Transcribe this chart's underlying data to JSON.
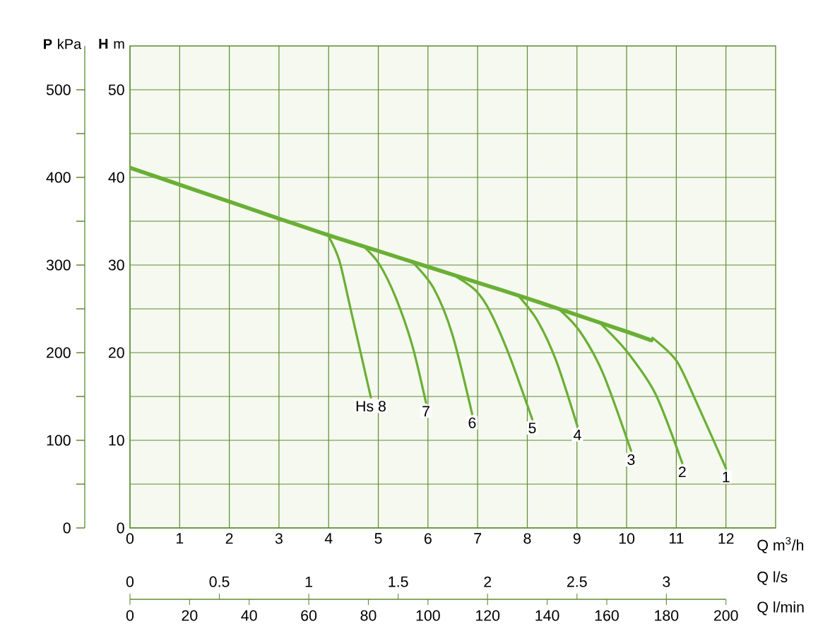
{
  "chart_data": {
    "type": "line",
    "xlabel": "Q m$^{3}$/h",
    "ylabel": "**H** m",
    "y2label": "**P** kPa",
    "x2label": "Q l/min",
    "annotations": [
      "Q l/s",
      "0",
      "0.5",
      "1",
      "1.5",
      "2",
      "2.5",
      "3"
    ],
    "xlim": [
      0,
      13
    ],
    "xticks": [
      0,
      1,
      2,
      3,
      4,
      5,
      6,
      7,
      8,
      9,
      10,
      11,
      12
    ],
    "ylim": [
      0,
      55
    ],
    "yticks": [
      0,
      {
        "value": 5,
        "label": null
      },
      10,
      {
        "value": 15,
        "label": null
      },
      20,
      {
        "value": 25,
        "label": null
      },
      30,
      {
        "value": 35,
        "label": null
      },
      40,
      {
        "value": 45,
        "label": null
      },
      50
    ],
    "y2lim": [
      0,
      550
    ],
    "y2ticks": [
      0,
      {
        "value": 50,
        "label": null
      },
      100,
      {
        "value": 150,
        "label": null
      },
      200,
      {
        "value": 250,
        "label": null
      },
      300,
      {
        "value": 350,
        "label": null
      },
      400,
      {
        "value": 450,
        "label": null
      },
      500
    ],
    "x2lim": [
      0,
      200
    ],
    "x2ticks": [
      0,
      20,
      40,
      60,
      80,
      100,
      120,
      140,
      160,
      180,
      200
    ],
    "grid": true,
    "series": [
      {
        "color": "#6aaf35",
        "x": [
          0,
          1.5,
          3,
          4,
          5,
          6,
          7,
          8,
          9,
          10,
          10.5
        ],
        "values": [
          41.1,
          38.2,
          35.3,
          33.4,
          31.6,
          29.8,
          28.0,
          26.2,
          24.3,
          22.4,
          21.4
        ]
      },
      {
        "name": "Hs 8",
        "color": "#6aaf35",
        "x": [
          3.97,
          4.21,
          4.43,
          4.85
        ],
        "values": [
          33.6,
          30.6,
          25.3,
          14.9
        ]
      },
      {
        "name": "7",
        "color": "#6aaf35",
        "x": [
          4.71,
          5.02,
          5.35,
          5.68,
          5.96
        ],
        "values": [
          32.1,
          30.1,
          26.3,
          20.9,
          14.3
        ]
      },
      {
        "name": "6",
        "color": "#6aaf35",
        "x": [
          5.68,
          6.11,
          6.49,
          6.89
        ],
        "values": [
          30.4,
          27.4,
          22.1,
          13.0
        ]
      },
      {
        "name": "5",
        "color": "#6aaf35",
        "x": [
          6.59,
          6.96,
          7.25,
          7.63,
          8.1
        ],
        "values": [
          28.6,
          27.1,
          24.7,
          19.8,
          12.4
        ]
      },
      {
        "name": "4",
        "color": "#6aaf35",
        "x": [
          7.82,
          8.2,
          8.58,
          9.01
        ],
        "values": [
          26.5,
          23.7,
          19.1,
          11.6
        ]
      },
      {
        "name": "3",
        "color": "#6aaf35",
        "x": [
          8.63,
          9.05,
          9.52,
          10.09
        ],
        "values": [
          25.0,
          22.5,
          17.7,
          8.8
        ]
      },
      {
        "name": "2",
        "color": "#6aaf35",
        "x": [
          9.48,
          10.01,
          10.58,
          11.12
        ],
        "values": [
          23.3,
          20.1,
          15.3,
          7.4
        ]
      },
      {
        "name": "1",
        "color": "#6aaf35",
        "x": [
          10.52,
          11.0,
          11.37,
          12.0
        ],
        "values": [
          21.7,
          19.1,
          14.8,
          6.8
        ]
      }
    ]
  }
}
